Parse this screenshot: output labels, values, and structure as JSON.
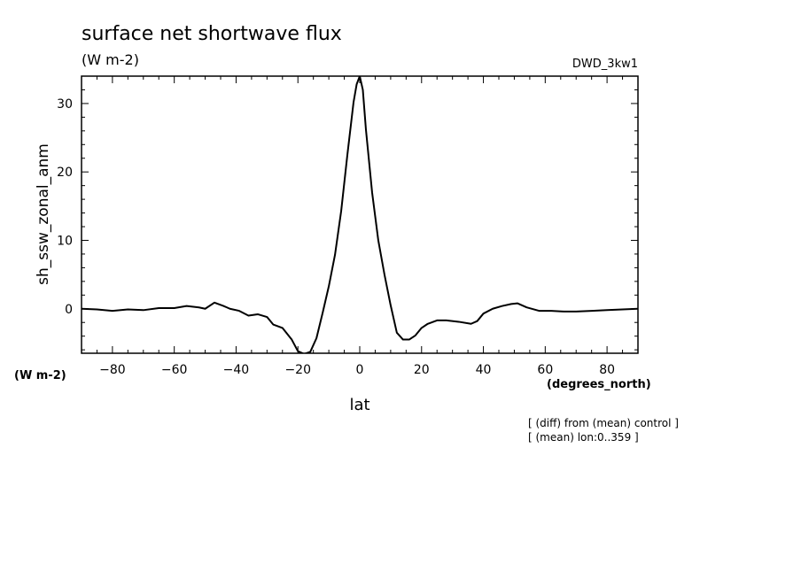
{
  "chart_data": {
    "type": "line",
    "title": "surface net shortwave flux",
    "units": "(W m-2)",
    "model_label": "DWD_3kw1",
    "ylabel": "sh_ssw_zonal_anm",
    "ylabel_units": "(W m-2)",
    "xlabel": "lat",
    "xlabel_units": "(degrees_north)",
    "notes": [
      "[ (diff) from (mean) control ]",
      "[ (mean) lon:0..359 ]"
    ],
    "xlim": [
      -90,
      90
    ],
    "ylim": [
      -6.5,
      34
    ],
    "xticks": [
      -80,
      -60,
      -40,
      -20,
      0,
      20,
      40,
      60,
      80
    ],
    "yticks": [
      0,
      10,
      20,
      30
    ],
    "grid": false,
    "series": [
      {
        "x": [
          -90,
          -85,
          -80,
          -75,
          -70,
          -65,
          -60,
          -56,
          -52,
          -50,
          -47,
          -44,
          -42,
          -39,
          -36,
          -33,
          -30,
          -28,
          -25,
          -22,
          -20,
          -18,
          -16,
          -14,
          -12,
          -10,
          -8,
          -6,
          -4,
          -2,
          -1,
          0,
          1,
          2,
          4,
          6,
          8,
          10,
          12,
          14,
          16,
          18,
          20,
          22,
          25,
          28,
          32,
          36,
          38,
          40,
          43,
          46,
          49,
          51,
          54,
          58,
          62,
          66,
          70,
          75,
          80,
          85,
          90
        ],
        "values": [
          0,
          -0.1,
          -0.3,
          -0.1,
          -0.2,
          0.1,
          0.1,
          0.4,
          0.2,
          0.0,
          0.9,
          0.4,
          0.0,
          -0.3,
          -1.0,
          -0.8,
          -1.2,
          -2.3,
          -2.8,
          -4.5,
          -6.2,
          -6.6,
          -6.3,
          -4.3,
          -0.6,
          3.3,
          7.9,
          14.3,
          22.5,
          30.2,
          32.8,
          34.0,
          32.0,
          26.2,
          17.0,
          10.0,
          5.0,
          0.5,
          -3.5,
          -4.5,
          -4.5,
          -3.9,
          -2.8,
          -2.2,
          -1.7,
          -1.7,
          -1.9,
          -2.2,
          -1.8,
          -0.7,
          0.0,
          0.4,
          0.7,
          0.8,
          0.2,
          -0.3,
          -0.3,
          -0.4,
          -0.4,
          -0.3,
          -0.2,
          -0.1,
          0.0
        ]
      }
    ]
  }
}
